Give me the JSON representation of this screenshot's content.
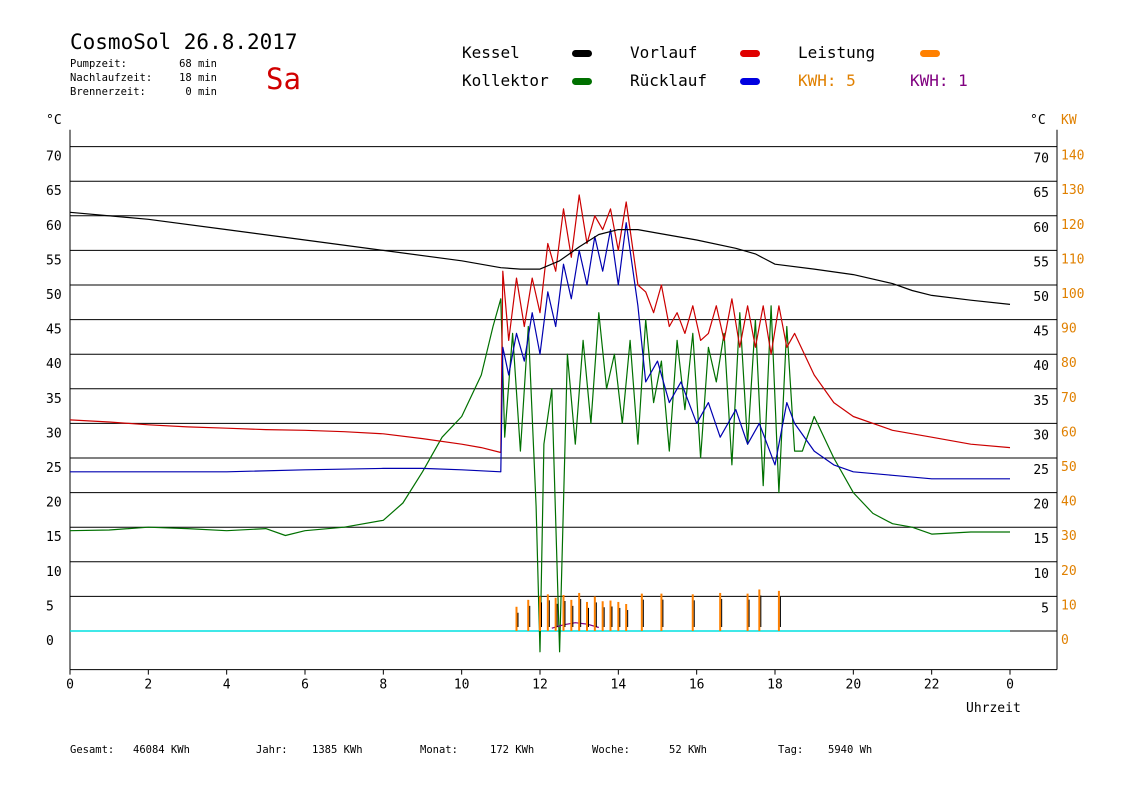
{
  "header": {
    "title": "CosmoSol 26.8.2017",
    "day": "Sa",
    "pump_label": "Pumpzeit:",
    "pump_value": "68 min",
    "nachlauf_label": "Nachlaufzeit:",
    "nachlauf_value": "18 min",
    "brenner_label": "Brennerzeit:",
    "brenner_value": "0 min"
  },
  "legend": {
    "kessel": "Kessel",
    "kollektor": "Kollektor",
    "vorlauf": "Vorlauf",
    "ruecklauf": "Rücklauf",
    "leistung": "Leistung",
    "kwh_orange": "KWH: 5",
    "kwh_purple": "KWH: 1"
  },
  "axes": {
    "left_unit": "°C",
    "right_unit": "°C",
    "right_unit2": "KW",
    "xlabel": "Uhrzeit"
  },
  "footer": {
    "gesamt_label": "Gesamt:",
    "gesamt_value": "46084 KWh",
    "jahr_label": "Jahr:",
    "jahr_value": "1385 KWh",
    "monat_label": "Monat:",
    "monat_value": "172 KWh",
    "woche_label": "Woche:",
    "woche_value": "52 KWh",
    "tag_label": "Tag:",
    "tag_value": "5940 Wh"
  },
  "colors": {
    "kessel": "#000000",
    "kollektor": "#007000",
    "vorlauf": "#cc0000",
    "ruecklauf": "#0000b0",
    "leistung": "#ff8000",
    "kwh2": "#800080",
    "baseline": "#00e0e0",
    "right_kw": "#e08000"
  },
  "chart_data": {
    "type": "line",
    "title": "CosmoSol 26.8.2017",
    "xlabel": "Uhrzeit",
    "ylabel": "°C",
    "y2label": "KW",
    "xlim": [
      0,
      24
    ],
    "ylim": [
      -5,
      72
    ],
    "y2lim": [
      -10,
      144
    ],
    "grid": true,
    "x_ticks": [
      "0",
      "2",
      "4",
      "6",
      "8",
      "10",
      "12",
      "14",
      "16",
      "18",
      "20",
      "22",
      "0"
    ],
    "y_ticks_left": [
      "0",
      "5",
      "10",
      "15",
      "20",
      "25",
      "30",
      "35",
      "40",
      "45",
      "50",
      "55",
      "60",
      "65",
      "70"
    ],
    "y_ticks_right": [
      "5",
      "10",
      "15",
      "20",
      "25",
      "30",
      "35",
      "40",
      "45",
      "50",
      "55",
      "60",
      "65",
      "70"
    ],
    "y2_ticks": [
      "0",
      "10",
      "20",
      "30",
      "40",
      "50",
      "60",
      "70",
      "80",
      "90",
      "100",
      "110",
      "120",
      "130",
      "140"
    ],
    "series": [
      {
        "name": "Kessel",
        "x": [
          0,
          2,
          4,
          6,
          8,
          10,
          11,
          11.5,
          12,
          12.5,
          13,
          13.5,
          14,
          14.5,
          15,
          16,
          17,
          17.5,
          18,
          19,
          20,
          21,
          21.5,
          22,
          23,
          24
        ],
        "y": [
          60.5,
          59.5,
          58,
          56.5,
          55,
          53.5,
          52.5,
          52.3,
          52.3,
          53.5,
          55.5,
          57.3,
          58,
          58,
          57.5,
          56.5,
          55.3,
          54.5,
          53,
          52.3,
          51.5,
          50.2,
          49.2,
          48.5,
          47.8,
          47.2
        ]
      },
      {
        "name": "Kollektor",
        "x": [
          0,
          1,
          2,
          3,
          4,
          5,
          5.5,
          6,
          7,
          8,
          8.5,
          9,
          9.5,
          10,
          10.5,
          10.8,
          11,
          11.1,
          11.3,
          11.5,
          11.7,
          11.9,
          12,
          12.1,
          12.3,
          12.5,
          12.7,
          12.9,
          13.1,
          13.3,
          13.5,
          13.7,
          13.9,
          14.1,
          14.3,
          14.5,
          14.7,
          14.9,
          15.1,
          15.3,
          15.5,
          15.7,
          15.9,
          16.1,
          16.3,
          16.5,
          16.7,
          16.9,
          17.1,
          17.3,
          17.5,
          17.7,
          17.9,
          18.1,
          18.3,
          18.5,
          18.7,
          19,
          19.5,
          20,
          20.5,
          21,
          21.5,
          22,
          23,
          24
        ],
        "y": [
          14.5,
          14.6,
          15,
          14.8,
          14.5,
          14.8,
          13.8,
          14.5,
          15,
          16,
          18.5,
          23,
          28,
          31,
          37,
          44,
          48,
          28,
          43,
          26,
          44,
          18,
          -3,
          27,
          35,
          -3,
          40,
          27,
          42,
          30,
          46,
          35,
          40,
          30,
          42,
          27,
          45,
          33,
          39,
          26,
          42,
          32,
          43,
          25,
          41,
          36,
          43,
          24,
          46,
          27,
          45,
          21,
          47,
          20,
          44,
          26,
          26,
          31,
          25,
          20,
          17,
          15.5,
          15,
          14,
          14.3,
          14.3
        ]
      },
      {
        "name": "Vorlauf",
        "x": [
          0,
          1,
          2,
          3,
          4,
          5,
          6,
          7,
          8,
          9,
          10,
          10.5,
          11,
          11.05,
          11.2,
          11.4,
          11.6,
          11.8,
          12,
          12.2,
          12.4,
          12.6,
          12.8,
          13,
          13.2,
          13.4,
          13.6,
          13.8,
          14,
          14.2,
          14.5,
          14.7,
          14.9,
          15.1,
          15.3,
          15.5,
          15.7,
          15.9,
          16.1,
          16.3,
          16.5,
          16.7,
          16.9,
          17.1,
          17.3,
          17.5,
          17.7,
          17.9,
          18.1,
          18.3,
          18.5,
          19,
          19.5,
          20,
          21,
          22,
          23,
          24
        ],
        "y": [
          30.5,
          30.2,
          29.8,
          29.5,
          29.3,
          29.1,
          29,
          28.8,
          28.5,
          27.8,
          27,
          26.5,
          25.8,
          52,
          42,
          51,
          44,
          51,
          46,
          56,
          52,
          61,
          54,
          63,
          56,
          60,
          58,
          61,
          55,
          62,
          50,
          49,
          46,
          50,
          44,
          46,
          43,
          47,
          42,
          43,
          47,
          42,
          48,
          41,
          47,
          41,
          47,
          40,
          47,
          41,
          43,
          37,
          33,
          31,
          29,
          28,
          27,
          26.5
        ]
      },
      {
        "name": "Rücklauf",
        "x": [
          0,
          2,
          4,
          6,
          8,
          9,
          10,
          11,
          11.05,
          11.2,
          11.4,
          11.6,
          11.8,
          12,
          12.2,
          12.4,
          12.6,
          12.8,
          13,
          13.2,
          13.4,
          13.6,
          13.8,
          14,
          14.2,
          14.5,
          14.7,
          15,
          15.3,
          15.6,
          16,
          16.3,
          16.6,
          17,
          17.3,
          17.6,
          18,
          18.3,
          18.5,
          19,
          19.5,
          20,
          21,
          22,
          23,
          24
        ],
        "y": [
          23,
          23,
          23,
          23.3,
          23.5,
          23.5,
          23.3,
          23,
          41,
          37,
          43,
          39,
          46,
          40,
          49,
          44,
          53,
          48,
          55,
          50,
          57,
          52,
          58,
          50,
          59,
          47,
          36,
          39,
          33,
          36,
          30,
          33,
          28,
          32,
          27,
          30,
          24,
          33,
          30,
          26,
          24,
          23,
          22.5,
          22,
          22,
          22
        ]
      },
      {
        "name": "Leistung",
        "x": [
          11,
          11.4,
          11.7,
          12,
          12.2,
          12.4,
          12.6,
          12.8,
          13,
          13.2,
          13.4,
          13.6,
          13.8,
          14,
          14.2,
          14.6,
          15.1,
          15.9,
          16.6,
          17.3,
          17.6,
          18.1
        ],
        "y": [
          0,
          3.5,
          4.5,
          5,
          5.3,
          4.8,
          5.2,
          4.5,
          5.5,
          4.2,
          5,
          4.3,
          4.4,
          4.2,
          3.9,
          5.4,
          5.4,
          5.3,
          5.5,
          5.4,
          6,
          5.8
        ]
      },
      {
        "name": "KWH 1",
        "x": [
          12.3,
          12.6,
          12.9,
          13.2,
          13.5
        ],
        "y": [
          0.4,
          0.9,
          1.2,
          1,
          0.5
        ]
      }
    ]
  }
}
